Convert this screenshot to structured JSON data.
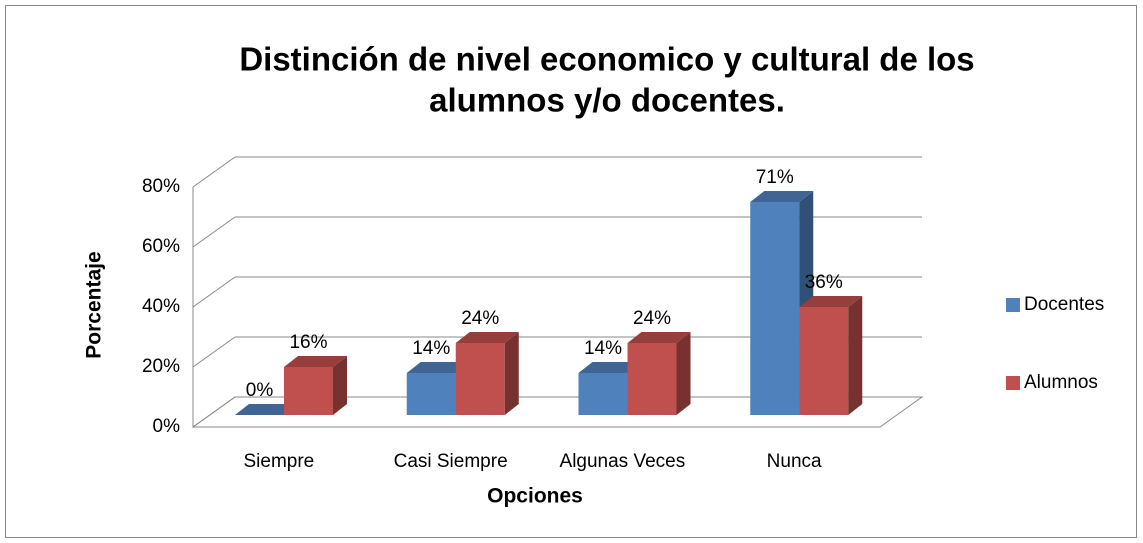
{
  "chart_data": {
    "type": "bar3d",
    "title": [
      "Distinción de nivel economico y cultural de los",
      "alumnos y/o docentes."
    ],
    "x_label": "Opciones",
    "y_label": "Porcentaje",
    "categories": [
      "Siempre",
      "Casi Siempre",
      "Algunas Veces",
      "Nunca"
    ],
    "series": [
      {
        "name": "Docentes",
        "color": "#4f81bd",
        "values": [
          0,
          14,
          14,
          71
        ],
        "value_labels": [
          "0%",
          "14%",
          "14%",
          "71%"
        ]
      },
      {
        "name": "Alumnos",
        "color": "#c0504d",
        "values": [
          16,
          24,
          24,
          36
        ],
        "value_labels": [
          "16%",
          "24%",
          "24%",
          "36%"
        ]
      }
    ],
    "ylim": [
      0,
      80
    ],
    "yticks": [
      {
        "value": 0,
        "label": "0%"
      },
      {
        "value": 20,
        "label": "20%"
      },
      {
        "value": 40,
        "label": "40%"
      },
      {
        "value": 60,
        "label": "60%"
      },
      {
        "value": 80,
        "label": "80%"
      }
    ],
    "grid": true,
    "legend": "right"
  }
}
